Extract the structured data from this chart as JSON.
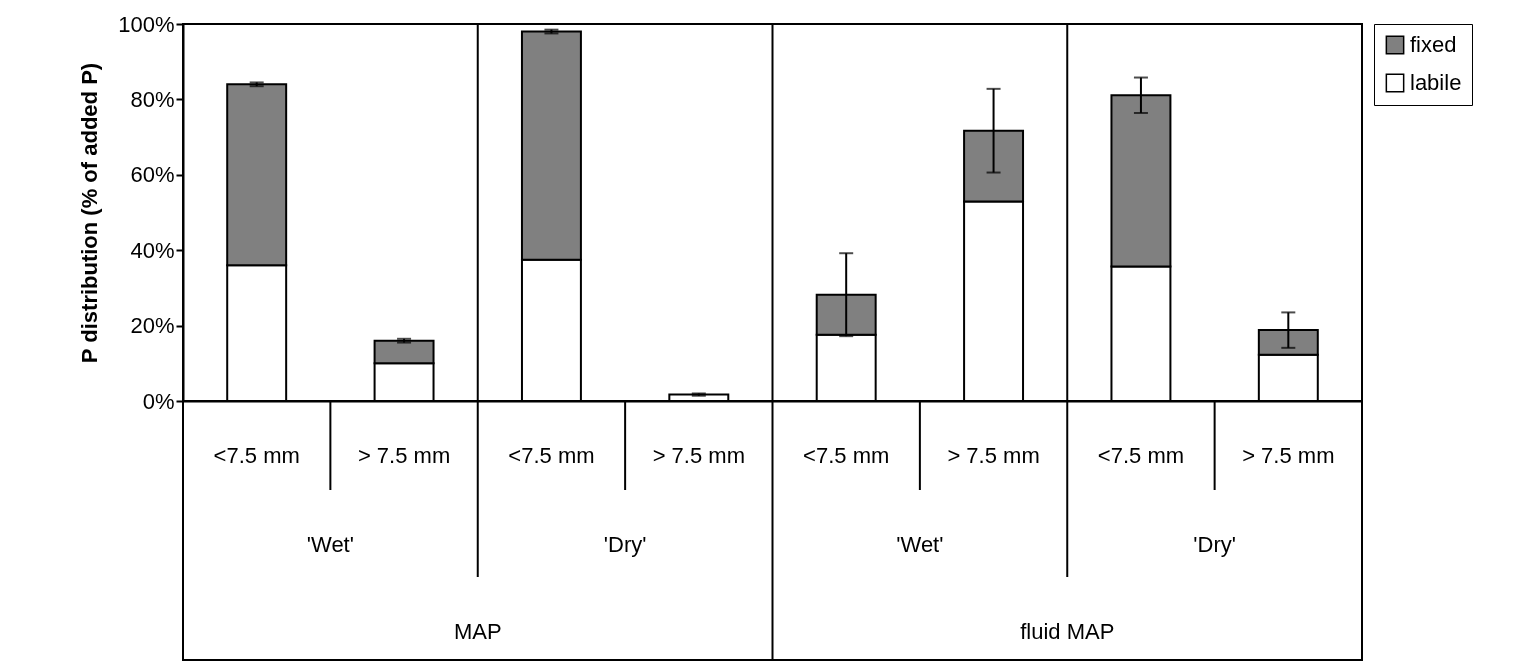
{
  "chart_data": {
    "type": "bar",
    "stacked": true,
    "ylabel": "P distribution (% of added P)",
    "categories": [
      "<7.5 mm",
      "> 7.5 mm",
      "<7.5 mm",
      "> 7.5 mm",
      "<7.5 mm",
      "> 7.5 mm",
      "<7.5 mm",
      "> 7.5 mm"
    ],
    "annotations": [
      "'Wet'",
      "'Dry'",
      "'Wet'",
      "'Dry'",
      "MAP",
      "fluid MAP"
    ],
    "series": [
      {
        "name": "labile",
        "color": "#ffffff",
        "values": [
          36,
          10,
          37.5,
          1.7,
          17.6,
          52.9,
          35.7,
          12.3
        ],
        "errors": [
          null,
          null,
          null,
          0.3,
          null,
          null,
          null,
          null
        ]
      },
      {
        "name": "fixed",
        "color": "#808080",
        "values": [
          48,
          6,
          60.5,
          null,
          10.6,
          18.8,
          45.4,
          6.5
        ],
        "errors": [
          0.5,
          0.5,
          0.5,
          null,
          11,
          11.1,
          4.7,
          4.7
        ]
      }
    ],
    "ylim": [
      0,
      100
    ],
    "yticks": [
      {
        "value": 0,
        "label": "0%"
      },
      {
        "value": 20,
        "label": "20%"
      },
      {
        "value": 40,
        "label": "40%"
      },
      {
        "value": 60,
        "label": "60%"
      },
      {
        "value": 80,
        "label": "80%"
      },
      {
        "value": 100,
        "label": "100%"
      }
    ],
    "grid": false,
    "legend": "top right"
  }
}
